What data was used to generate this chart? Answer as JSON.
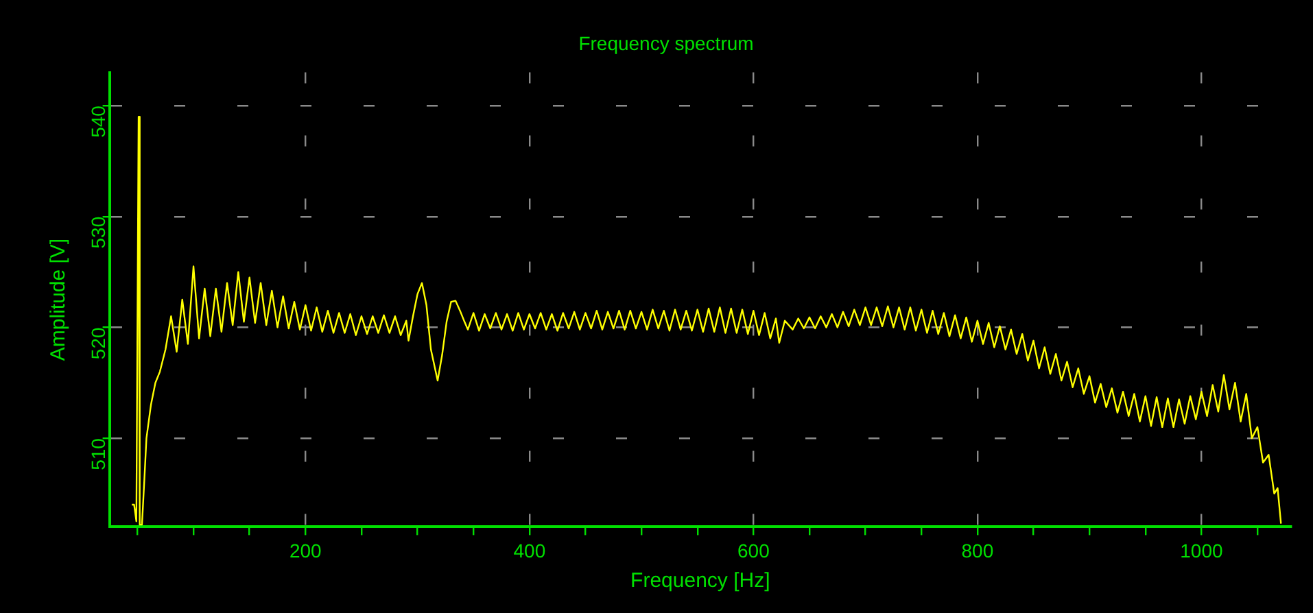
{
  "chart_data": {
    "type": "line",
    "title": "Frequency spectrum",
    "xlabel": "Frequency [Hz]",
    "ylabel": "Amplitude [V]",
    "xlim": [
      25,
      1080
    ],
    "ylim": [
      502,
      543
    ],
    "xticks": [
      {
        "value": 50,
        "label": null
      },
      {
        "value": 100,
        "label": null
      },
      {
        "value": 150,
        "label": null
      },
      200,
      {
        "value": 250,
        "label": null
      },
      {
        "value": 300,
        "label": null
      },
      {
        "value": 350,
        "label": null
      },
      400,
      {
        "value": 450,
        "label": null
      },
      {
        "value": 500,
        "label": null
      },
      {
        "value": 550,
        "label": null
      },
      600,
      {
        "value": 650,
        "label": null
      },
      {
        "value": 700,
        "label": null
      },
      {
        "value": 750,
        "label": null
      },
      800,
      {
        "value": 850,
        "label": null
      },
      {
        "value": 900,
        "label": null
      },
      {
        "value": 950,
        "label": null
      },
      1000,
      {
        "value": 1050,
        "label": null
      }
    ],
    "yticks": [
      510,
      520,
      530,
      540
    ],
    "grid": true,
    "series": [
      {
        "color": "#ffff00",
        "x": [
          45,
          47,
          49,
          51,
          52,
          54,
          56,
          58,
          62,
          66,
          70,
          75,
          80,
          85,
          90,
          95,
          100,
          105,
          110,
          115,
          120,
          125,
          130,
          135,
          140,
          145,
          150,
          155,
          160,
          165,
          170,
          175,
          180,
          185,
          190,
          195,
          200,
          205,
          210,
          215,
          220,
          225,
          230,
          235,
          240,
          245,
          250,
          255,
          260,
          265,
          270,
          275,
          280,
          285,
          290,
          292,
          296,
          300,
          304,
          308,
          312,
          318,
          322,
          326,
          330,
          334,
          338,
          342,
          345,
          350,
          355,
          360,
          365,
          370,
          375,
          380,
          385,
          390,
          395,
          400,
          405,
          410,
          415,
          420,
          425,
          430,
          435,
          440,
          445,
          450,
          455,
          460,
          465,
          470,
          475,
          480,
          485,
          490,
          495,
          500,
          505,
          510,
          515,
          520,
          525,
          530,
          535,
          540,
          545,
          550,
          555,
          560,
          565,
          570,
          575,
          580,
          585,
          590,
          595,
          600,
          605,
          610,
          615,
          620,
          623,
          628,
          635,
          640,
          645,
          650,
          655,
          660,
          665,
          670,
          675,
          680,
          685,
          690,
          695,
          700,
          705,
          710,
          715,
          720,
          725,
          730,
          735,
          740,
          745,
          750,
          755,
          760,
          765,
          770,
          775,
          780,
          785,
          790,
          795,
          800,
          805,
          810,
          815,
          820,
          825,
          830,
          835,
          840,
          845,
          850,
          855,
          860,
          865,
          870,
          875,
          880,
          885,
          890,
          895,
          900,
          905,
          910,
          915,
          920,
          925,
          930,
          935,
          940,
          945,
          950,
          955,
          960,
          965,
          970,
          975,
          980,
          985,
          990,
          995,
          1000,
          1005,
          1010,
          1015,
          1020,
          1025,
          1030,
          1035,
          1040,
          1045,
          1050,
          1055,
          1060,
          1065,
          1068,
          1071
        ],
        "values": [
          504,
          504,
          502.5,
          539,
          502.2,
          502.2,
          506,
          510,
          513,
          515,
          516,
          518,
          521,
          517.8,
          522.5,
          518.5,
          525.5,
          519,
          523.5,
          519.2,
          523.5,
          519.6,
          524,
          520.2,
          525,
          520.5,
          524.5,
          520.4,
          524,
          520.2,
          523.3,
          520,
          522.8,
          519.9,
          522.3,
          519.8,
          522,
          519.7,
          521.8,
          519.6,
          521.5,
          519.5,
          521.3,
          519.5,
          521.2,
          519.3,
          521,
          519.4,
          521,
          519.5,
          521.1,
          519.5,
          521,
          519.3,
          520.6,
          518.8,
          521,
          523,
          524,
          522,
          518,
          515.2,
          517.5,
          520.5,
          522.3,
          522.4,
          521.5,
          520.5,
          519.8,
          521.3,
          519.7,
          521.2,
          519.9,
          521.3,
          519.8,
          521.2,
          519.7,
          521.3,
          519.8,
          521.2,
          519.9,
          521.3,
          519.8,
          521.2,
          519.7,
          521.3,
          519.9,
          521.4,
          519.8,
          521.3,
          519.9,
          521.5,
          519.8,
          521.4,
          519.9,
          521.5,
          519.8,
          521.5,
          519.9,
          521.4,
          519.8,
          521.6,
          519.9,
          521.5,
          519.7,
          521.6,
          519.8,
          521.5,
          519.7,
          521.6,
          519.6,
          521.7,
          519.6,
          521.8,
          519.5,
          521.7,
          519.5,
          521.6,
          519.4,
          521.5,
          519.3,
          521.3,
          519,
          520.8,
          518.6,
          520.6,
          519.8,
          520.8,
          519.9,
          520.9,
          519.9,
          521,
          520,
          521.2,
          520,
          521.4,
          520.1,
          521.6,
          520.2,
          521.8,
          520.2,
          521.8,
          520.1,
          521.9,
          520,
          521.8,
          519.8,
          521.8,
          519.7,
          521.6,
          519.5,
          521.5,
          519.4,
          521.3,
          519.2,
          521.1,
          519,
          520.9,
          518.7,
          520.6,
          518.5,
          520.4,
          518.2,
          520.1,
          518,
          519.8,
          517.6,
          519.4,
          517,
          518.8,
          516.3,
          518.2,
          515.8,
          517.6,
          515.2,
          516.9,
          514.6,
          516.3,
          514,
          515.6,
          513.2,
          514.9,
          512.8,
          514.5,
          512.3,
          514.2,
          512,
          514,
          511.5,
          513.8,
          511.1,
          513.7,
          511,
          513.6,
          511,
          513.5,
          511.3,
          513.8,
          511.7,
          514.2,
          512,
          514.8,
          512.4,
          515.7,
          512.6,
          515,
          511.5,
          514,
          510,
          511,
          507.8,
          508.5,
          505,
          505.5,
          502.3
        ]
      }
    ]
  }
}
